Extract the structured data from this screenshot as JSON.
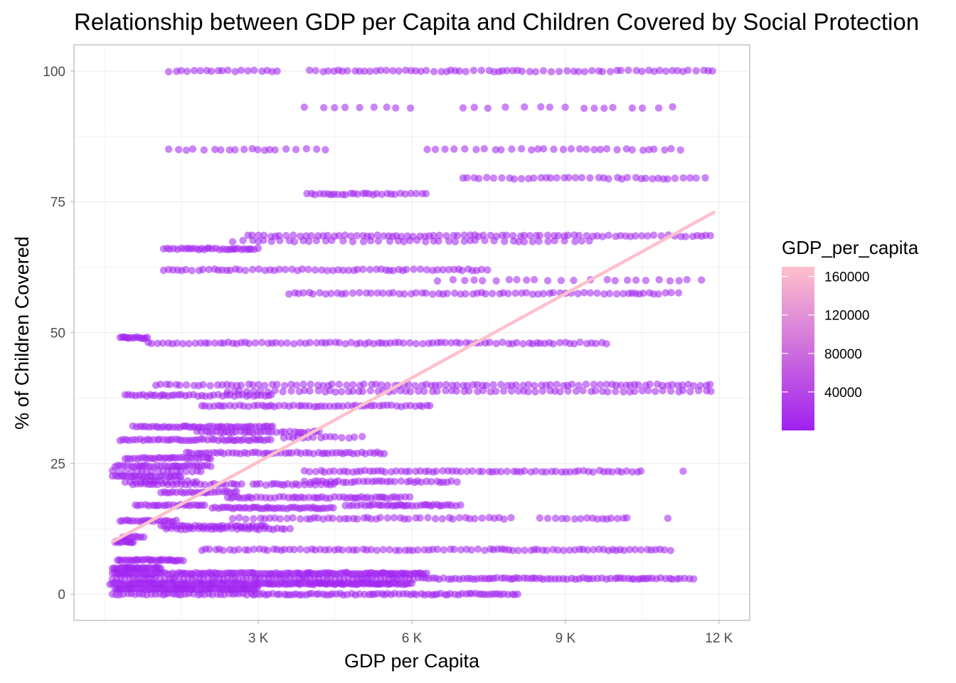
{
  "chart_data": {
    "type": "scatter",
    "title": "Relationship between GDP per Capita and Children Covered by Social Protection",
    "xlabel": "GDP per Capita",
    "ylabel": "% of Children Covered",
    "xlim": [
      -600,
      12600
    ],
    "ylim": [
      -5,
      105
    ],
    "x_ticks": [
      3000,
      6000,
      9000,
      12000
    ],
    "x_tick_labels": [
      "3 K",
      "6 K",
      "9 K",
      "12 K"
    ],
    "y_ticks": [
      0,
      25,
      50,
      75,
      100
    ],
    "y_tick_labels": [
      "0",
      "25",
      "50",
      "75",
      "100"
    ],
    "grid": true,
    "legend": {
      "title": "GDP_per_capita",
      "position": "right",
      "type": "gradient",
      "ticks": [
        40000,
        80000,
        120000,
        160000
      ],
      "tick_labels": [
        "40000",
        "80000",
        "120000",
        "160000"
      ],
      "range": [
        0,
        170000
      ],
      "low_color": "#a020f0",
      "high_color": "#ffc0cb"
    },
    "point_color": "#a020f0",
    "point_opacity": 0.55,
    "trend_line": {
      "color": "#ffc0cb",
      "x": [
        150,
        11900
      ],
      "y": [
        10,
        73
      ]
    },
    "bands": [
      {
        "y": 100,
        "ranges": [
          [
            1250,
            3400
          ],
          [
            4000,
            11950
          ]
        ],
        "step": 115
      },
      {
        "y": 93,
        "ranges": [
          [
            3900,
            6300
          ],
          [
            7000,
            11300
          ]
        ],
        "step": 280
      },
      {
        "y": 85,
        "ranges": [
          [
            1250,
            4400
          ],
          [
            6300,
            11250
          ]
        ],
        "step": 160
      },
      {
        "y": 79.5,
        "ranges": [
          [
            7000,
            11900
          ]
        ],
        "step": 130
      },
      {
        "y": 76.5,
        "ranges": [
          [
            3950,
            6300
          ]
        ],
        "step": 85
      },
      {
        "y": 68.5,
        "ranges": [
          [
            2800,
            11900
          ]
        ],
        "step": 110
      },
      {
        "y": 67.5,
        "ranges": [
          [
            2500,
            9500
          ]
        ],
        "step": 160
      },
      {
        "y": 66,
        "ranges": [
          [
            1150,
            3000
          ]
        ],
        "step": 55
      },
      {
        "y": 62,
        "ranges": [
          [
            1150,
            7500
          ]
        ],
        "step": 105
      },
      {
        "y": 60,
        "ranges": [
          [
            6500,
            11900
          ]
        ],
        "step": 240
      },
      {
        "y": 57.5,
        "ranges": [
          [
            3600,
            11250
          ]
        ],
        "step": 105
      },
      {
        "y": 49,
        "ranges": [
          [
            300,
            850
          ]
        ],
        "step": 40
      },
      {
        "y": 48,
        "ranges": [
          [
            850,
            4400
          ],
          [
            4400,
            9900
          ]
        ],
        "step": 95
      },
      {
        "y": 40,
        "ranges": [
          [
            1000,
            11900
          ]
        ],
        "step": 110
      },
      {
        "y": 38.8,
        "ranges": [
          [
            2400,
            11900
          ]
        ],
        "step": 120
      },
      {
        "y": 38,
        "ranges": [
          [
            400,
            3300
          ]
        ],
        "step": 70
      },
      {
        "y": 36,
        "ranges": [
          [
            1900,
            6400
          ]
        ],
        "step": 80
      },
      {
        "y": 32,
        "ranges": [
          [
            550,
            3300
          ]
        ],
        "step": 55
      },
      {
        "y": 31,
        "ranges": [
          [
            1800,
            4200
          ]
        ],
        "step": 80
      },
      {
        "y": 30,
        "ranges": [
          [
            3500,
            5100
          ]
        ],
        "step": 120
      },
      {
        "y": 29.5,
        "ranges": [
          [
            300,
            3300
          ]
        ],
        "step": 60
      },
      {
        "y": 27,
        "ranges": [
          [
            1600,
            5500
          ]
        ],
        "step": 75
      },
      {
        "y": 26,
        "ranges": [
          [
            400,
            2100
          ]
        ],
        "step": 55
      },
      {
        "y": 24.5,
        "ranges": [
          [
            200,
            2100
          ]
        ],
        "step": 55
      },
      {
        "y": 23.5,
        "ranges": [
          [
            150,
            2000
          ],
          [
            3900,
            10500
          ],
          [
            11300,
            11300
          ]
        ],
        "step": 95
      },
      {
        "y": 22.5,
        "ranges": [
          [
            150,
            1500
          ]
        ],
        "step": 55
      },
      {
        "y": 21.5,
        "ranges": [
          [
            400,
            1800
          ],
          [
            3900,
            6900
          ]
        ],
        "step": 90
      },
      {
        "y": 21,
        "ranges": [
          [
            550,
            2700
          ],
          [
            2900,
            4500
          ]
        ],
        "step": 85
      },
      {
        "y": 19.5,
        "ranges": [
          [
            1100,
            2600
          ]
        ],
        "step": 60
      },
      {
        "y": 18.5,
        "ranges": [
          [
            2400,
            6000
          ]
        ],
        "step": 70
      },
      {
        "y": 17,
        "ranges": [
          [
            600,
            2000
          ],
          [
            4700,
            7000
          ]
        ],
        "step": 65
      },
      {
        "y": 16.5,
        "ranges": [
          [
            2100,
            4500
          ]
        ],
        "step": 55
      },
      {
        "y": 14.5,
        "ranges": [
          [
            2500,
            8000
          ],
          [
            8500,
            10300
          ],
          [
            11000,
            11000
          ]
        ],
        "step": 110
      },
      {
        "y": 14,
        "ranges": [
          [
            300,
            1400
          ]
        ],
        "step": 55
      },
      {
        "y": 13,
        "ranges": [
          [
            1100,
            3200
          ]
        ],
        "step": 65
      },
      {
        "y": 12.5,
        "ranges": [
          [
            1200,
            3700
          ]
        ],
        "step": 80
      },
      {
        "y": 11,
        "ranges": [
          [
            350,
            800
          ]
        ],
        "step": 45
      },
      {
        "y": 10,
        "ranges": [
          [
            200,
            600
          ]
        ],
        "step": 40
      },
      {
        "y": 8.5,
        "ranges": [
          [
            1900,
            11100
          ]
        ],
        "step": 95
      },
      {
        "y": 6.5,
        "ranges": [
          [
            250,
            1550
          ]
        ],
        "step": 45
      },
      {
        "y": 5,
        "ranges": [
          [
            150,
            1100
          ]
        ],
        "step": 35
      },
      {
        "y": 4,
        "ranges": [
          [
            150,
            6300
          ]
        ],
        "step": 45
      },
      {
        "y": 3,
        "ranges": [
          [
            150,
            11600
          ]
        ],
        "step": 70
      },
      {
        "y": 2,
        "ranges": [
          [
            100,
            6000
          ]
        ],
        "step": 40
      },
      {
        "y": 1,
        "ranges": [
          [
            200,
            3000
          ]
        ],
        "step": 40
      },
      {
        "y": 0,
        "ranges": [
          [
            150,
            8100
          ]
        ],
        "step": 70
      }
    ]
  }
}
